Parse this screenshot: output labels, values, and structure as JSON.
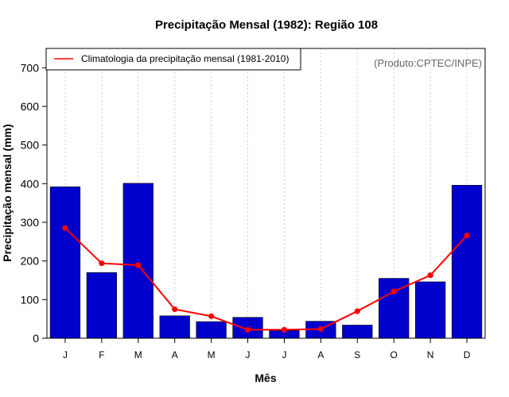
{
  "chart_data": {
    "type": "bar",
    "title": "Precipitação Mensal (1982): Região 108",
    "xlabel": "Mês",
    "ylabel": "Precipitação mensal (mm)",
    "credit": "(Produto:CPTEC/INPE)",
    "categories": [
      "J",
      "F",
      "M",
      "A",
      "M",
      "J",
      "J",
      "A",
      "S",
      "O",
      "N",
      "D"
    ],
    "ylim": [
      0,
      750
    ],
    "yticks": [
      0,
      100,
      200,
      300,
      400,
      500,
      600,
      700
    ],
    "series": [
      {
        "name": "Precipitação mensal (1982)",
        "type": "bar",
        "color": "#0000CC",
        "values": [
          392,
          170,
          401,
          58,
          43,
          54,
          20,
          44,
          34,
          155,
          146,
          396
        ]
      },
      {
        "name": "Climatologia da precipitação mensal (1981-2010)",
        "type": "line",
        "color": "#FF0000",
        "values": [
          285,
          194,
          189,
          75,
          57,
          22,
          22,
          24,
          70,
          121,
          163,
          266
        ]
      }
    ],
    "legend": {
      "position": "top-left",
      "entries": [
        "Climatologia da precipitação mensal (1981-2010)"
      ]
    },
    "grid": "vertical-dotted"
  }
}
